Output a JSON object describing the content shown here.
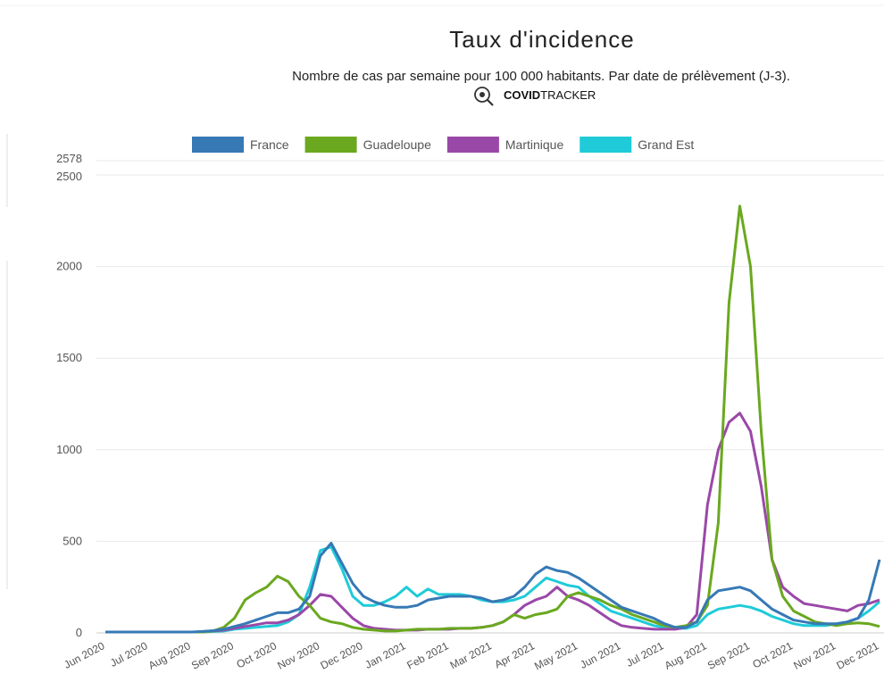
{
  "chart_data": {
    "type": "line",
    "title": "Taux d'incidence",
    "subtitle": "Nombre de cas par semaine pour 100 000 habitants. Par date de prélèvement (J-3).",
    "source_logo": {
      "bold": "COVID",
      "text": "TRACKER"
    },
    "categories": [
      "Jun 2020",
      null,
      null,
      null,
      "Jul 2020",
      null,
      null,
      null,
      "Aug 2020",
      null,
      null,
      null,
      "Sep 2020",
      null,
      null,
      null,
      "Oct 2020",
      null,
      null,
      null,
      "Nov 2020",
      null,
      null,
      null,
      "Dec 2020",
      null,
      null,
      null,
      "Jan 2021",
      null,
      null,
      null,
      "Feb 2021",
      null,
      null,
      null,
      "Mar 2021",
      null,
      null,
      null,
      "Apr 2021",
      null,
      null,
      null,
      "May 2021",
      null,
      null,
      null,
      "Jun 2021",
      null,
      null,
      null,
      "Jul 2021",
      null,
      null,
      null,
      "Aug 2021",
      null,
      null,
      null,
      "Sep 2021",
      null,
      null,
      null,
      "Oct 2021",
      null,
      null,
      null,
      "Nov 2021",
      null,
      null,
      null,
      "Dec 2021"
    ],
    "ylim": [
      0,
      2578
    ],
    "yticks": [
      0,
      500,
      1000,
      1500,
      2000,
      2500,
      2578
    ],
    "grid": true,
    "legend": "top",
    "series": [
      {
        "name": "France",
        "color": "#3679b5",
        "values": [
          5,
          5,
          5,
          5,
          5,
          5,
          5,
          5,
          5,
          8,
          12,
          20,
          35,
          50,
          70,
          90,
          110,
          110,
          130,
          200,
          420,
          490,
          380,
          270,
          200,
          170,
          150,
          140,
          140,
          150,
          180,
          190,
          200,
          200,
          200,
          190,
          170,
          180,
          200,
          250,
          320,
          360,
          340,
          330,
          300,
          260,
          220,
          180,
          140,
          120,
          100,
          80,
          50,
          30,
          30,
          60,
          180,
          230,
          240,
          250,
          230,
          180,
          130,
          100,
          70,
          60,
          50,
          50,
          50,
          60,
          80,
          180,
          400
        ]
      },
      {
        "name": "Guadeloupe",
        "color": "#6aa81f",
        "values": [
          5,
          5,
          5,
          5,
          5,
          5,
          5,
          5,
          5,
          5,
          10,
          30,
          80,
          180,
          220,
          250,
          310,
          280,
          200,
          150,
          80,
          60,
          50,
          30,
          20,
          15,
          10,
          10,
          15,
          20,
          20,
          20,
          25,
          25,
          25,
          30,
          40,
          60,
          100,
          80,
          100,
          110,
          130,
          200,
          220,
          200,
          180,
          150,
          130,
          100,
          80,
          60,
          40,
          30,
          40,
          60,
          150,
          600,
          1800,
          2330,
          2000,
          1100,
          400,
          200,
          120,
          90,
          60,
          50,
          40,
          50,
          55,
          50,
          35
        ]
      },
      {
        "name": "Martinique",
        "color": "#9a48a8",
        "values": [
          5,
          5,
          5,
          5,
          5,
          5,
          5,
          5,
          5,
          5,
          10,
          15,
          25,
          35,
          45,
          55,
          55,
          70,
          100,
          150,
          210,
          200,
          140,
          80,
          40,
          25,
          20,
          15,
          15,
          15,
          20,
          20,
          20,
          25,
          25,
          30,
          40,
          60,
          100,
          150,
          180,
          200,
          250,
          200,
          180,
          150,
          110,
          70,
          40,
          30,
          25,
          20,
          20,
          20,
          30,
          100,
          700,
          1000,
          1150,
          1200,
          1100,
          800,
          400,
          250,
          200,
          160,
          150,
          140,
          130,
          120,
          150,
          160,
          180
        ]
      },
      {
        "name": "Grand Est",
        "color": "#1fcbd8",
        "values": [
          5,
          5,
          5,
          5,
          5,
          5,
          5,
          5,
          5,
          5,
          8,
          10,
          20,
          25,
          30,
          35,
          40,
          60,
          100,
          250,
          450,
          470,
          350,
          200,
          150,
          150,
          170,
          200,
          250,
          200,
          240,
          210,
          210,
          210,
          200,
          180,
          170,
          170,
          180,
          200,
          250,
          300,
          280,
          260,
          250,
          200,
          160,
          120,
          100,
          80,
          60,
          40,
          30,
          25,
          25,
          40,
          100,
          130,
          140,
          150,
          140,
          120,
          90,
          70,
          50,
          40,
          40,
          40,
          50,
          60,
          80,
          120,
          170
        ]
      }
    ]
  }
}
